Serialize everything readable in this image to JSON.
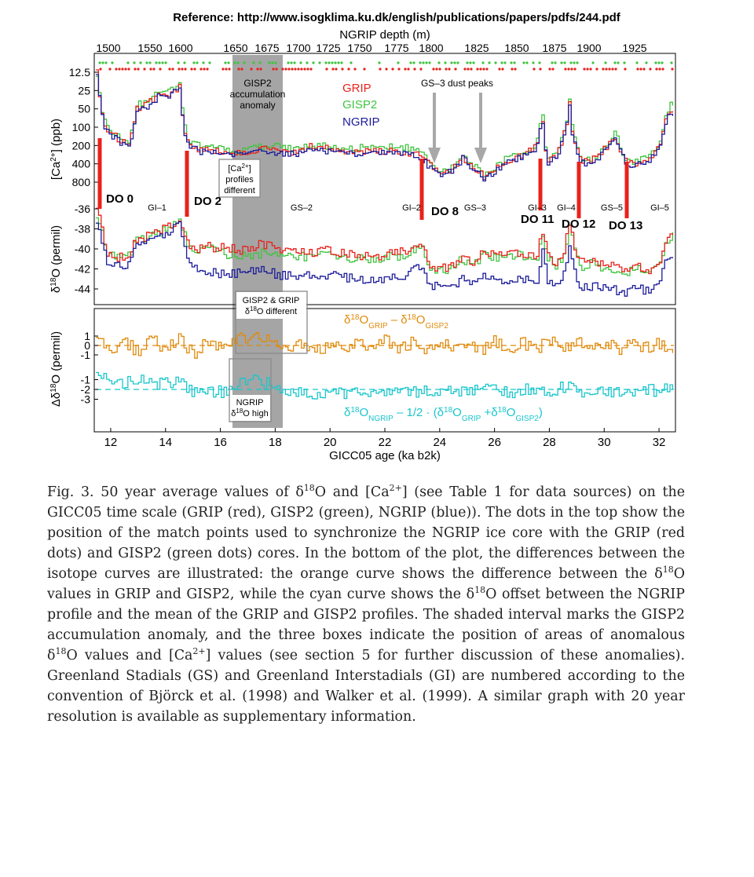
{
  "reference": "Reference: http://www.isogklima.ku.dk/english/publications/papers/pdfs/244.pdf",
  "colors": {
    "grip": "#e8221b",
    "gisp2": "#3fc43f",
    "ngrip": "#1b1b9a",
    "orange": "#e08a0c",
    "cyan": "#19c6cc",
    "shade": "#9b9b9b"
  },
  "chart_data": [
    {
      "type": "line",
      "panel": "calcium",
      "xlabel": "GICC05 age (ka b2k)",
      "x_ticks": [
        "12",
        "14",
        "16",
        "18",
        "20",
        "22",
        "24",
        "26",
        "28",
        "30",
        "32"
      ],
      "top_axis_label": "NGRIP depth (m)",
      "top_ticks": [
        "1500",
        "1550",
        "1600",
        "1650",
        "1675",
        "1700",
        "1725",
        "1750",
        "1775",
        "1800",
        "1825",
        "1850",
        "1875",
        "1900",
        "1925"
      ],
      "ylabel_main": "[Ca",
      "ylabel_sup": "2+",
      "ylabel_tail": "] (ppb)",
      "y_ticks": [
        "12.5",
        "25",
        "50",
        "100",
        "200",
        "400",
        "800"
      ],
      "xlim": [
        11.4,
        32.6
      ],
      "series": [
        {
          "name": "GRIP",
          "x": [
            11.5,
            11.8,
            12.2,
            12.6,
            12.9,
            13.3,
            13.7,
            14.1,
            14.5,
            14.8,
            15.1,
            15.6,
            16.2,
            16.8,
            17.4,
            18.0,
            18.6,
            19.2,
            19.8,
            20.4,
            21.0,
            21.6,
            22.2,
            22.8,
            23.3,
            23.6,
            24.0,
            24.4,
            24.8,
            25.2,
            25.6,
            26.0,
            26.4,
            26.8,
            27.2,
            27.5,
            27.7,
            27.9,
            28.2,
            28.5,
            28.7,
            28.9,
            29.1,
            29.4,
            29.7,
            30.0,
            30.4,
            30.8,
            31.2,
            31.6,
            32.0,
            32.2,
            32.4
          ],
          "y": [
            12.5,
            100,
            150,
            200,
            50,
            40,
            30,
            28,
            22,
            180,
            220,
            250,
            250,
            280,
            220,
            240,
            260,
            210,
            220,
            240,
            260,
            240,
            250,
            260,
            300,
            420,
            600,
            500,
            300,
            450,
            650,
            500,
            350,
            300,
            260,
            200,
            35,
            350,
            300,
            120,
            40,
            180,
            350,
            380,
            300,
            220,
            130,
            400,
            380,
            320,
            200,
            70,
            50
          ]
        },
        {
          "name": "GISP2",
          "x": [
            11.5,
            11.8,
            12.2,
            12.6,
            12.9,
            13.3,
            13.7,
            14.1,
            14.5,
            14.8,
            15.1,
            15.6,
            16.2,
            16.8,
            17.4,
            18.0,
            18.6,
            19.2,
            19.8,
            20.4,
            21.0,
            21.6,
            22.2,
            22.8,
            23.3,
            23.6,
            24.0,
            24.4,
            24.8,
            25.2,
            25.6,
            26.0,
            26.4,
            26.8,
            27.2,
            27.5,
            27.7,
            27.9,
            28.2,
            28.5,
            28.7,
            28.9,
            29.1,
            29.4,
            29.7,
            30.0,
            30.4,
            30.8,
            31.2,
            31.6,
            32.0,
            32.2,
            32.4
          ],
          "y": [
            14,
            90,
            140,
            180,
            45,
            35,
            26,
            25,
            20,
            160,
            200,
            220,
            230,
            250,
            210,
            210,
            230,
            190,
            200,
            220,
            220,
            210,
            210,
            220,
            260,
            380,
            550,
            460,
            280,
            420,
            600,
            460,
            320,
            270,
            240,
            190,
            32,
            330,
            270,
            110,
            38,
            160,
            320,
            350,
            280,
            200,
            120,
            370,
            350,
            300,
            190,
            60,
            40
          ]
        },
        {
          "name": "NGRIP",
          "x": [
            11.5,
            11.8,
            12.2,
            12.6,
            12.9,
            13.3,
            13.7,
            14.1,
            14.5,
            14.8,
            15.1,
            15.6,
            16.2,
            16.8,
            17.4,
            18.0,
            18.6,
            19.2,
            19.8,
            20.4,
            21.0,
            21.6,
            22.2,
            22.8,
            23.3,
            23.6,
            24.0,
            24.4,
            24.8,
            25.2,
            25.6,
            26.0,
            26.4,
            26.8,
            27.2,
            27.5,
            27.7,
            27.9,
            28.2,
            28.5,
            28.7,
            28.9,
            29.1,
            29.4,
            29.7,
            30.0,
            30.4,
            30.8,
            31.2,
            31.6,
            32.0,
            32.2,
            32.4
          ],
          "y": [
            13,
            110,
            160,
            210,
            55,
            45,
            32,
            30,
            24,
            200,
            240,
            260,
            260,
            290,
            240,
            260,
            280,
            230,
            240,
            260,
            280,
            260,
            270,
            280,
            330,
            450,
            650,
            530,
            320,
            480,
            700,
            530,
            370,
            320,
            280,
            220,
            40,
            380,
            320,
            130,
            45,
            200,
            380,
            400,
            320,
            240,
            140,
            430,
            410,
            340,
            220,
            80,
            60
          ]
        }
      ]
    },
    {
      "type": "line",
      "panel": "d18O",
      "ylabel_main": "δ",
      "ylabel_sup": "18",
      "ylabel_tail": "O (permil)",
      "y_ticks": [
        "-36",
        "-38",
        "-40",
        "-42",
        "-44"
      ],
      "xlim": [
        11.4,
        32.6
      ],
      "ylim": [
        -45.5,
        -35.5
      ],
      "series": [
        {
          "name": "GRIP",
          "x": [
            11.5,
            11.8,
            12.2,
            12.6,
            12.9,
            13.3,
            13.7,
            14.1,
            14.5,
            14.8,
            15.1,
            15.6,
            16.2,
            16.8,
            17.4,
            18.0,
            18.6,
            19.2,
            19.8,
            20.4,
            21.0,
            21.6,
            22.2,
            22.8,
            23.3,
            23.6,
            24.0,
            24.4,
            24.8,
            25.2,
            25.6,
            26.0,
            26.4,
            26.8,
            27.2,
            27.5,
            27.7,
            27.9,
            28.2,
            28.5,
            28.7,
            28.9,
            29.1,
            29.4,
            29.7,
            30.0,
            30.4,
            30.8,
            31.2,
            31.6,
            32.0,
            32.2,
            32.4
          ],
          "y": [
            -36,
            -40.5,
            -40.8,
            -41,
            -39,
            -38.8,
            -38.2,
            -37.8,
            -37,
            -39.5,
            -40,
            -39.8,
            -39.9,
            -40.2,
            -39.5,
            -39.8,
            -40.3,
            -40.5,
            -40.2,
            -40.4,
            -40.6,
            -40.8,
            -40.5,
            -40.2,
            -39,
            -41.5,
            -42,
            -41.8,
            -40.8,
            -41.2,
            -40.2,
            -40.5,
            -40.8,
            -40.3,
            -40.5,
            -41.2,
            -38,
            -40.5,
            -41.5,
            -40.3,
            -37.5,
            -39.8,
            -41.5,
            -41.2,
            -41.3,
            -41.5,
            -41.8,
            -42,
            -41.7,
            -42.2,
            -41.2,
            -39,
            -38.5
          ]
        },
        {
          "name": "GISP2",
          "x": [
            11.5,
            11.8,
            12.2,
            12.6,
            12.9,
            13.3,
            13.7,
            14.1,
            14.5,
            14.8,
            15.1,
            15.6,
            16.2,
            16.8,
            17.4,
            18.0,
            18.6,
            19.2,
            19.8,
            20.4,
            21.0,
            21.6,
            22.2,
            22.8,
            23.3,
            23.6,
            24.0,
            24.4,
            24.8,
            25.2,
            25.6,
            26.0,
            26.4,
            26.8,
            27.2,
            27.5,
            27.7,
            27.9,
            28.2,
            28.5,
            28.7,
            28.9,
            29.1,
            29.4,
            29.7,
            30.0,
            30.4,
            30.8,
            31.2,
            31.6,
            32.0,
            32.2,
            32.4
          ],
          "y": [
            -36.5,
            -40.3,
            -40.7,
            -40.8,
            -39.3,
            -39,
            -38.5,
            -38,
            -37.3,
            -39.8,
            -40.3,
            -40,
            -40.5,
            -40.8,
            -40.5,
            -40.3,
            -40.6,
            -40.8,
            -40.5,
            -40.8,
            -41,
            -41.1,
            -40.8,
            -40.5,
            -39.4,
            -41.8,
            -42.2,
            -42,
            -41,
            -41.5,
            -40.6,
            -40.8,
            -41,
            -40.6,
            -40.8,
            -41.4,
            -38.4,
            -40.8,
            -41.8,
            -40.6,
            -37.9,
            -40,
            -41.8,
            -41.5,
            -41.6,
            -41.9,
            -42,
            -42.3,
            -42,
            -42.4,
            -41.5,
            -39.4,
            -38.8
          ]
        },
        {
          "name": "NGRIP",
          "x": [
            11.5,
            11.8,
            12.2,
            12.6,
            12.9,
            13.3,
            13.7,
            14.1,
            14.5,
            14.8,
            15.1,
            15.6,
            16.2,
            16.8,
            17.4,
            18.0,
            18.6,
            19.2,
            19.8,
            20.4,
            21.0,
            21.6,
            22.2,
            22.8,
            23.3,
            23.6,
            24.0,
            24.4,
            24.8,
            25.2,
            25.6,
            26.0,
            26.4,
            26.8,
            27.2,
            27.5,
            27.7,
            27.9,
            28.2,
            28.5,
            28.7,
            28.9,
            29.1,
            29.4,
            29.7,
            30.0,
            30.4,
            30.8,
            31.2,
            31.6,
            32.0,
            32.2,
            32.4
          ],
          "y": [
            -37,
            -41.2,
            -41.5,
            -41.7,
            -39.5,
            -39.3,
            -38.8,
            -38.4,
            -37.6,
            -41,
            -42,
            -42.3,
            -42.5,
            -42.3,
            -42,
            -42.5,
            -42.8,
            -42.5,
            -42.6,
            -42.8,
            -43,
            -43.2,
            -43,
            -42.7,
            -41.5,
            -43.5,
            -44,
            -43.7,
            -43,
            -43.3,
            -42.7,
            -43,
            -43.2,
            -42.8,
            -43,
            -43.6,
            -40,
            -43,
            -43.8,
            -42.6,
            -39.6,
            -42,
            -44,
            -43.8,
            -43.7,
            -43.9,
            -44.1,
            -44.3,
            -44,
            -44.2,
            -43,
            -41.5,
            -40.5
          ]
        }
      ]
    },
    {
      "type": "line",
      "panel": "diff",
      "ylabel_main": "Δδ",
      "ylabel_sup": "18",
      "ylabel_tail": "O (permil)",
      "y_ticks": [
        "1",
        "0",
        "-1",
        "-1",
        "-2",
        "-3"
      ],
      "xlim": [
        11.4,
        32.6
      ],
      "ylim": [
        -4,
        2
      ],
      "series": [
        {
          "name": "orange",
          "x": [
            11.5,
            12.0,
            12.5,
            13.0,
            13.5,
            14.0,
            14.5,
            15.0,
            15.5,
            16.0,
            16.5,
            17.0,
            17.5,
            18.0,
            18.5,
            19.0,
            19.5,
            20.0,
            20.5,
            21.0,
            21.5,
            22.0,
            22.5,
            23.0,
            23.5,
            24.0,
            24.5,
            25.0,
            25.5,
            26.0,
            26.5,
            27.0,
            27.5,
            28.0,
            28.5,
            29.0,
            29.5,
            30.0,
            30.5,
            31.0,
            31.5,
            32.0,
            32.4
          ],
          "y": [
            0.5,
            -0.6,
            0.4,
            -0.8,
            0.6,
            -0.5,
            0.7,
            -0.9,
            0.3,
            -0.4,
            0.5,
            0.9,
            1.0,
            0.6,
            -0.2,
            0.3,
            -0.5,
            0.2,
            -0.6,
            0.4,
            -0.3,
            0.5,
            -0.4,
            0.3,
            -0.7,
            0.4,
            -0.5,
            0.2,
            -0.6,
            0.5,
            -0.3,
            0.4,
            -0.6,
            0.7,
            -0.2,
            0.5,
            -0.4,
            0.3,
            -0.5,
            0.4,
            -0.3,
            0.2,
            -0.4
          ]
        },
        {
          "name": "cyan",
          "x": [
            11.5,
            12.0,
            12.5,
            13.0,
            13.5,
            14.0,
            14.5,
            15.0,
            15.5,
            16.0,
            16.5,
            17.0,
            17.5,
            18.0,
            18.5,
            19.0,
            19.5,
            20.0,
            20.5,
            21.0,
            21.5,
            22.0,
            22.5,
            23.0,
            23.5,
            24.0,
            24.5,
            25.0,
            25.5,
            26.0,
            26.5,
            27.0,
            27.5,
            28.0,
            28.5,
            29.0,
            29.5,
            30.0,
            30.5,
            31.0,
            31.5,
            32.0,
            32.4
          ],
          "y": [
            -0.3,
            -1.5,
            -1.2,
            -0.9,
            -1.6,
            -1.1,
            -1.3,
            -2.4,
            -2.0,
            -2.3,
            -1.6,
            -0.9,
            -1.3,
            -1.5,
            -2.3,
            -2.1,
            -2.5,
            -2.0,
            -2.6,
            -2.2,
            -2.4,
            -2.1,
            -2.5,
            -2.2,
            -2.1,
            -2.4,
            -2.0,
            -2.3,
            -1.9,
            -2.2,
            -2.4,
            -2.0,
            -1.8,
            -2.3,
            -1.7,
            -2.1,
            -2.3,
            -2.0,
            -2.4,
            -2.1,
            -1.9,
            -2.2,
            -1.8
          ]
        }
      ]
    }
  ],
  "annotations": {
    "shade_label": [
      "GISP2",
      "accumulation",
      "anomaly"
    ],
    "legend": [
      "GRIP",
      "GISP2",
      "NGRIP"
    ],
    "dust_peaks": "GS–3 dust peaks",
    "box_ca": [
      "[Ca",
      "2+",
      "]",
      "profiles",
      "different"
    ],
    "box_d18_title": "GISP2 & GRIP",
    "box_d18_sub": "δ",
    "box_d18_sup": "18",
    "box_d18_tail": "O different",
    "box_ngrip_1": "NGRIP",
    "box_ngrip_2": "δ",
    "box_ngrip_sup": "18",
    "box_ngrip_tail": "O high",
    "do_labels": [
      "DO 0",
      "DO 2",
      "DO 8",
      "DO 11",
      "DO 12",
      "DO 13"
    ],
    "stadial_labels": [
      "GI–1",
      "GS–2",
      "GI–2",
      "GS–3",
      "GI–3",
      "GI–4",
      "GS–5",
      "GI–5"
    ],
    "orange_label": {
      "a": "δ",
      "s1": "18",
      "b": "O",
      "sub1": "GRIP",
      "c": " – δ",
      "s2": "18",
      "d": "O",
      "sub2": "GISP2"
    },
    "cyan_label": {
      "a": "δ",
      "s1": "18",
      "b": "O",
      "sub1": "NGRIP",
      "c": " – 1/2 · (δ",
      "s2": "18",
      "d": "O",
      "sub2": "GRIP",
      "e": " +δ",
      "s3": "18",
      "f": "O",
      "sub3": "GISP2",
      "g": ")"
    }
  },
  "caption": {
    "p1": "Fig. 3. 50 year average values of δ",
    "s1": "18",
    "p2": "O and [Ca",
    "s2": "2+",
    "p3": "] (see Table 1 for data sources) on the GICC05 time scale (GRIP (red), GISP2 (green), NGRIP (blue)). The dots in the top show the position of the match points used to synchronize the NGRIP ice core with the GRIP (red dots) and GISP2 (green dots) cores. In the bottom of the plot, the differences between the isotope curves are illustrated: the orange curve shows the difference between the δ",
    "s3": "18",
    "p4": "O values in GRIP and GISP2, while the cyan curve shows the δ",
    "s4": "18",
    "p5": "O offset between the NGRIP profile and the mean of the GRIP and GISP2 profiles. The shaded interval marks the GISP2 accumulation anomaly, and the three boxes indicate the position of areas of anomalous δ",
    "s5": "18",
    "p6": "O values and [Ca",
    "s6": "2+",
    "p7": "] values (see section 5 for further discussion of these anomalies). Greenland Stadials (GS) and Greenland Interstadials (GI) are numbered according to the convention of Björck et al. (1998) and Walker et al. (1999). A similar graph with 20 year resolution is available as supplementary information."
  }
}
